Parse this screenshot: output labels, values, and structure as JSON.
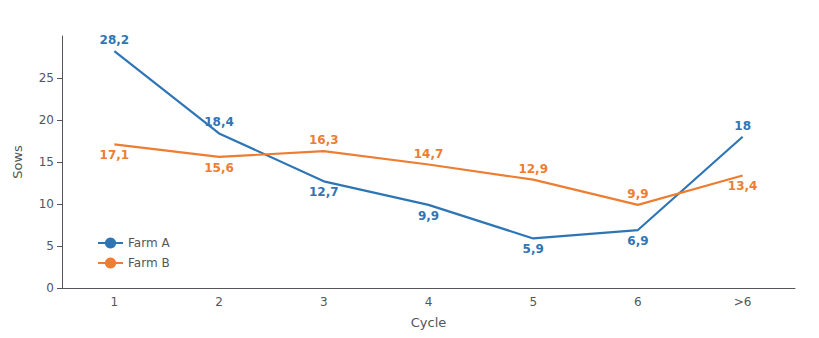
{
  "chart_data": {
    "type": "line",
    "categories": [
      "1",
      "2",
      "3",
      "4",
      "5",
      "6",
      ">6"
    ],
    "series": [
      {
        "name": "Farm A",
        "color": "#2E75B6",
        "values": [
          28.2,
          18.4,
          12.7,
          9.9,
          5.9,
          6.9,
          18.0
        ],
        "value_labels": [
          "28,2",
          "18,4",
          "12,7",
          "9,9",
          "5,9",
          "6,9",
          "18"
        ]
      },
      {
        "name": "Farm B",
        "color": "#ED7D31",
        "values": [
          17.1,
          15.6,
          16.3,
          14.7,
          12.9,
          9.9,
          13.4
        ],
        "value_labels": [
          "17,1",
          "15,6",
          "16,3",
          "14,7",
          "12,9",
          "9,9",
          "13,4"
        ]
      }
    ],
    "xlabel": "Cycle",
    "ylabel": "Sows",
    "ylim": [
      0,
      30
    ],
    "yticks": [
      0,
      5,
      10,
      15,
      20,
      25
    ],
    "grid": false,
    "legend": "lower left",
    "data_labels": true
  }
}
